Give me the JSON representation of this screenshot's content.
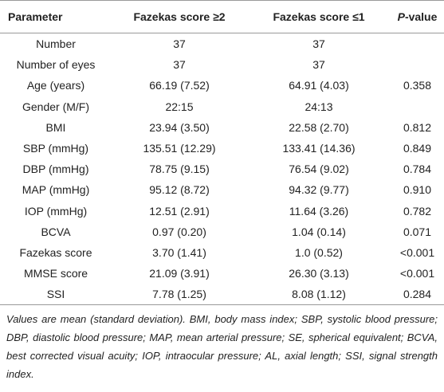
{
  "table": {
    "header": [
      "Parameter",
      "Fazekas score ≥2",
      "Fazekas score ≤1",
      {
        "italic": "P",
        "rest": "-value"
      }
    ],
    "rows": [
      [
        "Number",
        "37",
        "37",
        null
      ],
      [
        "Number of eyes",
        "37",
        "37",
        null
      ],
      [
        "Age (years)",
        "66.19 (7.52)",
        "64.91 (4.03)",
        "0.358"
      ],
      [
        "Gender (M/F)",
        "22:15",
        "24:13",
        null
      ],
      [
        "BMI",
        "23.94 (3.50)",
        "22.58 (2.70)",
        "0.812"
      ],
      [
        "SBP (mmHg)",
        "135.51 (12.29)",
        "133.41 (14.36)",
        "0.849"
      ],
      [
        "DBP (mmHg)",
        "78.75 (9.15)",
        "76.54 (9.02)",
        "0.784"
      ],
      [
        "MAP (mmHg)",
        "95.12 (8.72)",
        "94.32 (9.77)",
        "0.910"
      ],
      [
        "IOP (mmHg)",
        "12.51 (2.91)",
        "11.64 (3.26)",
        "0.782"
      ],
      [
        "BCVA",
        "0.97 (0.20)",
        "1.04 (0.14)",
        "0.071"
      ],
      [
        "Fazekas score",
        "3.70 (1.41)",
        "1.0 (0.52)",
        "<0.001"
      ],
      [
        "MMSE score",
        "21.09 (3.91)",
        "26.30 (3.13)",
        "<0.001"
      ],
      [
        "SSI",
        "7.78 (1.25)",
        "8.08 (1.12)",
        "0.284"
      ]
    ]
  },
  "footnote": "Values are mean (standard deviation). BMI, body mass index; SBP, systolic blood pressure; DBP, diastolic blood pressure; MAP, mean arterial pressure; SE, spherical equivalent; BCVA, best corrected visual acuity; IOP, intraocular pressure; AL, axial length; SSI, signal strength index."
}
